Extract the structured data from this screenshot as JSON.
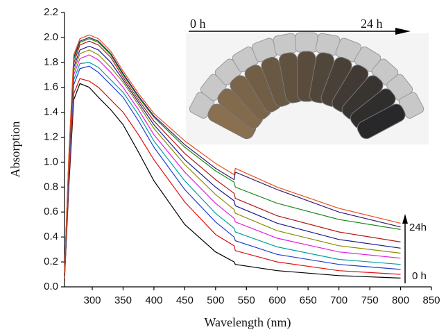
{
  "chart_data": {
    "type": "line",
    "x_label": "Wavelength (nm)",
    "y_label": "Absorption",
    "annotations": [
      "0 h",
      "24 h",
      "24h",
      "0 h"
    ],
    "x": [
      255,
      262,
      270,
      280,
      295,
      310,
      330,
      350,
      375,
      400,
      450,
      500,
      530,
      532,
      600,
      700,
      800
    ],
    "series": [
      {
        "color": "#000000",
        "values": [
          0.05,
          0.8,
          1.5,
          1.63,
          1.6,
          1.52,
          1.42,
          1.3,
          1.08,
          0.85,
          0.5,
          0.28,
          0.2,
          0.18,
          0.13,
          0.09,
          0.07
        ]
      },
      {
        "color": "#e01010",
        "values": [
          0.06,
          0.85,
          1.55,
          1.67,
          1.65,
          1.6,
          1.5,
          1.4,
          1.22,
          1.02,
          0.68,
          0.42,
          0.33,
          0.29,
          0.2,
          0.13,
          0.1
        ]
      },
      {
        "color": "#1f3fd0",
        "values": [
          0.07,
          0.9,
          1.62,
          1.75,
          1.77,
          1.72,
          1.62,
          1.52,
          1.33,
          1.12,
          0.78,
          0.52,
          0.4,
          0.37,
          0.26,
          0.18,
          0.14
        ]
      },
      {
        "color": "#00a0a0",
        "values": [
          0.07,
          0.92,
          1.66,
          1.79,
          1.8,
          1.76,
          1.66,
          1.56,
          1.38,
          1.17,
          0.85,
          0.59,
          0.47,
          0.44,
          0.32,
          0.22,
          0.18
        ]
      },
      {
        "color": "#e020e0",
        "values": [
          0.08,
          0.95,
          1.7,
          1.83,
          1.86,
          1.82,
          1.72,
          1.6,
          1.42,
          1.22,
          0.92,
          0.67,
          0.55,
          0.52,
          0.39,
          0.28,
          0.23
        ]
      },
      {
        "color": "#8b8b00",
        "values": [
          0.08,
          0.97,
          1.73,
          1.87,
          1.9,
          1.86,
          1.76,
          1.64,
          1.46,
          1.27,
          0.98,
          0.74,
          0.62,
          0.59,
          0.45,
          0.33,
          0.27
        ]
      },
      {
        "color": "#1a1a8c",
        "values": [
          0.09,
          0.99,
          1.76,
          1.9,
          1.93,
          1.9,
          1.8,
          1.66,
          1.48,
          1.3,
          1.02,
          0.8,
          0.69,
          0.65,
          0.51,
          0.38,
          0.31
        ]
      },
      {
        "color": "#b01818",
        "values": [
          0.09,
          1.0,
          1.79,
          1.94,
          1.97,
          1.94,
          1.84,
          1.68,
          1.5,
          1.33,
          1.07,
          0.86,
          0.75,
          0.71,
          0.57,
          0.44,
          0.36
        ]
      },
      {
        "color": "#1a8c1a",
        "values": [
          0.1,
          1.02,
          1.82,
          1.96,
          1.99,
          1.96,
          1.86,
          1.7,
          1.52,
          1.36,
          1.12,
          0.93,
          0.84,
          0.8,
          0.67,
          0.54,
          0.46
        ]
      },
      {
        "color": "#3a1a6e",
        "values": [
          0.1,
          1.03,
          1.84,
          1.97,
          2.0,
          1.97,
          1.87,
          1.71,
          1.53,
          1.37,
          1.14,
          0.95,
          0.86,
          0.92,
          0.78,
          0.6,
          0.48
        ]
      },
      {
        "color": "#e8501a",
        "values": [
          0.11,
          1.05,
          1.86,
          1.99,
          2.02,
          1.99,
          1.89,
          1.73,
          1.55,
          1.39,
          1.17,
          0.99,
          0.9,
          0.95,
          0.8,
          0.63,
          0.51
        ]
      }
    ],
    "xlim": [
      255,
      850
    ],
    "ylim": [
      0,
      2.2
    ],
    "xticks": [
      300,
      350,
      400,
      450,
      500,
      550,
      600,
      650,
      700,
      750,
      800,
      850
    ],
    "yticks": [
      {
        "value": 0,
        "label": "0.0"
      },
      0.2,
      0.4,
      0.6,
      0.8,
      {
        "value": 1,
        "label": "1.0"
      },
      1.2,
      1.4,
      1.6,
      1.8,
      {
        "value": 2,
        "label": "2.0"
      },
      2.2
    ]
  }
}
